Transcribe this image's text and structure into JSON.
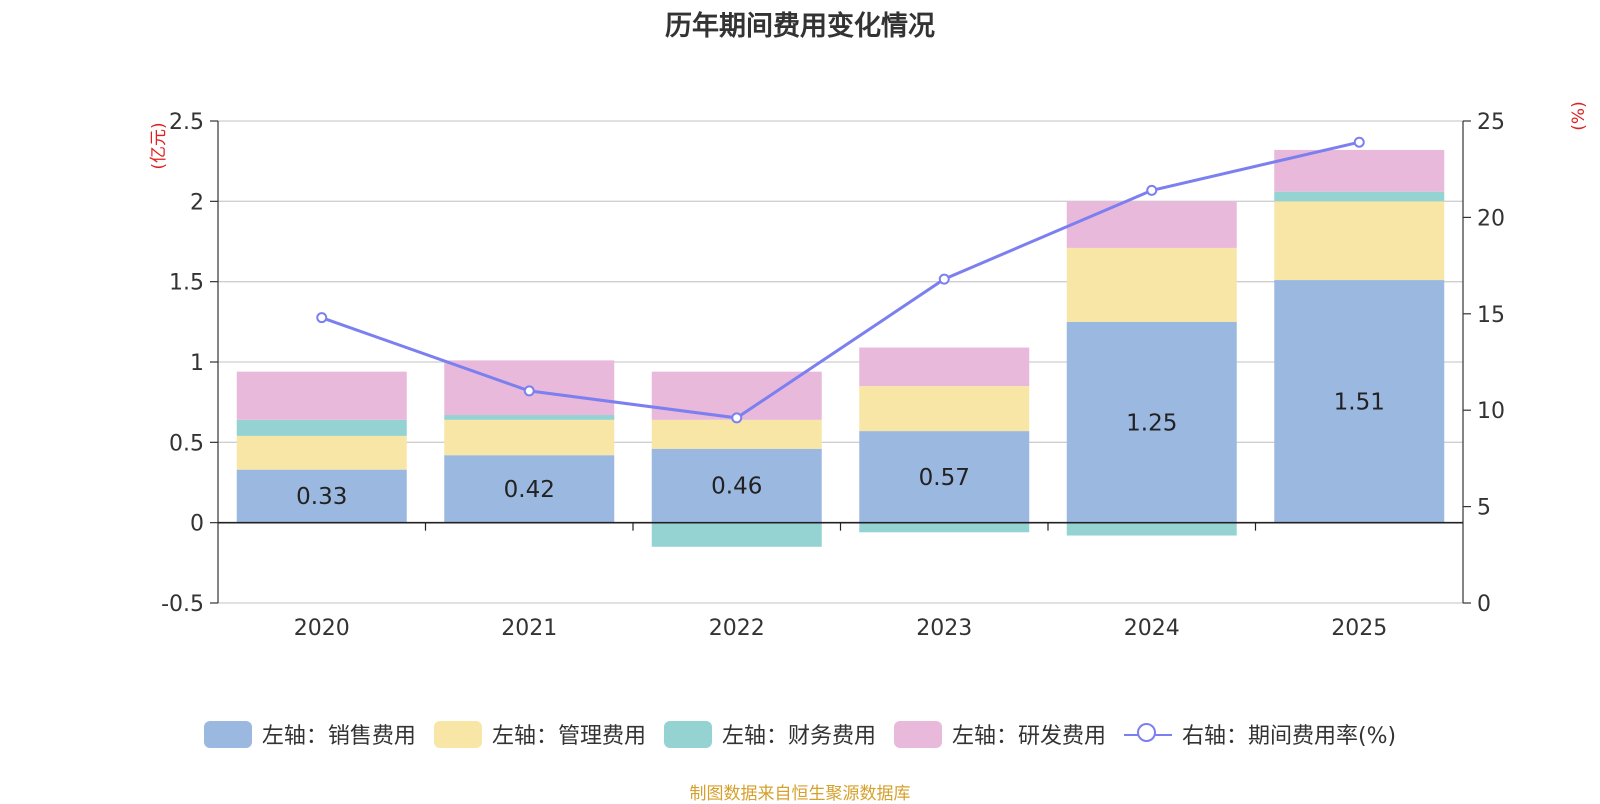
{
  "chart_data": {
    "type": "bar",
    "stacked": true,
    "title": "历年期间费用变化情况",
    "categories": [
      "2020",
      "2021",
      "2022",
      "2023",
      "2024",
      "2025"
    ],
    "left_axis": {
      "unit": "(亿元)",
      "ylim": [
        -0.5,
        2.5
      ],
      "ticks": [
        "-0.5",
        "0",
        "0.5",
        "1",
        "1.5",
        "2",
        "2.5"
      ]
    },
    "right_axis": {
      "unit": "(%)",
      "ylim": [
        0,
        25
      ],
      "ticks": [
        "0",
        "5",
        "10",
        "15",
        "20",
        "25"
      ]
    },
    "series": [
      {
        "name": "左轴：销售费用",
        "color": "#9bb8e0",
        "values": [
          0.33,
          0.42,
          0.46,
          0.57,
          1.25,
          1.51
        ],
        "labels": [
          "0.33",
          "0.42",
          "0.46",
          "0.57",
          "1.25",
          "1.51"
        ]
      },
      {
        "name": "左轴：管理费用",
        "color": "#f8e6a6",
        "values": [
          0.21,
          0.22,
          0.18,
          0.28,
          0.46,
          0.49
        ]
      },
      {
        "name": "左轴：财务费用",
        "color": "#95d3d3",
        "values": [
          0.1,
          0.03,
          -0.15,
          -0.06,
          -0.08,
          0.06
        ]
      },
      {
        "name": "左轴：研发费用",
        "color": "#e8b9da",
        "values": [
          0.3,
          0.34,
          0.3,
          0.24,
          0.29,
          0.26
        ]
      }
    ],
    "line_series": {
      "name": "右轴：期间费用率(%)",
      "color": "#7b7ff0",
      "values": [
        14.8,
        11.0,
        9.6,
        16.8,
        21.4,
        23.9
      ]
    },
    "legend_position": "bottom",
    "grid": true
  },
  "source": "制图数据来自恒生聚源数据库"
}
